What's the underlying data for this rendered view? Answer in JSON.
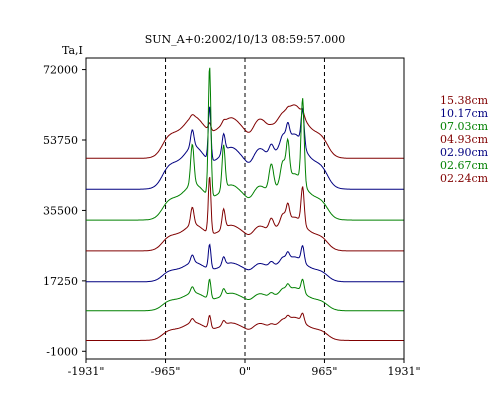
{
  "chart_data": {
    "type": "line",
    "title": "SUN_A+0:2002/10/13 08:59:57.000",
    "ylabel": "Ta,I",
    "xlabel": "",
    "x_ticks": [
      "-1931\"",
      "-965\"",
      "0\"",
      "965\"",
      "1931\""
    ],
    "x_tick_values": [
      -1931,
      -965,
      0,
      965,
      1931
    ],
    "y_ticks": [
      "72000",
      "53750",
      "35500",
      "17250",
      "-1000"
    ],
    "y_tick_values": [
      72000,
      53750,
      35500,
      17250,
      -1000
    ],
    "xlim": [
      -1931,
      1931
    ],
    "ylim": [
      -3000,
      75000
    ],
    "vlines": [
      -965,
      0,
      965
    ],
    "series": [
      {
        "name": "15.38cm",
        "color": "#800000",
        "baseline": 49000,
        "scale": 6000,
        "sharp": 0.05
      },
      {
        "name": "10.17cm",
        "color": "#000080",
        "baseline": 41000,
        "scale": 6200,
        "sharp": 0.35
      },
      {
        "name": "07.03cm",
        "color": "#008000",
        "baseline": 33000,
        "scale": 5200,
        "sharp": 1.0
      },
      {
        "name": "04.93cm",
        "color": "#800000",
        "baseline": 25000,
        "scale": 3800,
        "sharp": 0.6
      },
      {
        "name": "02.90cm",
        "color": "#000080",
        "baseline": 17000,
        "scale": 2800,
        "sharp": 0.35
      },
      {
        "name": "02.67cm",
        "color": "#008000",
        "baseline": 9500,
        "scale": 2600,
        "sharp": 0.3
      },
      {
        "name": "02.24cm",
        "color": "#800000",
        "baseline": 1800,
        "scale": 2600,
        "sharp": 0.2
      }
    ],
    "grid": false,
    "legend_placement": "right"
  }
}
